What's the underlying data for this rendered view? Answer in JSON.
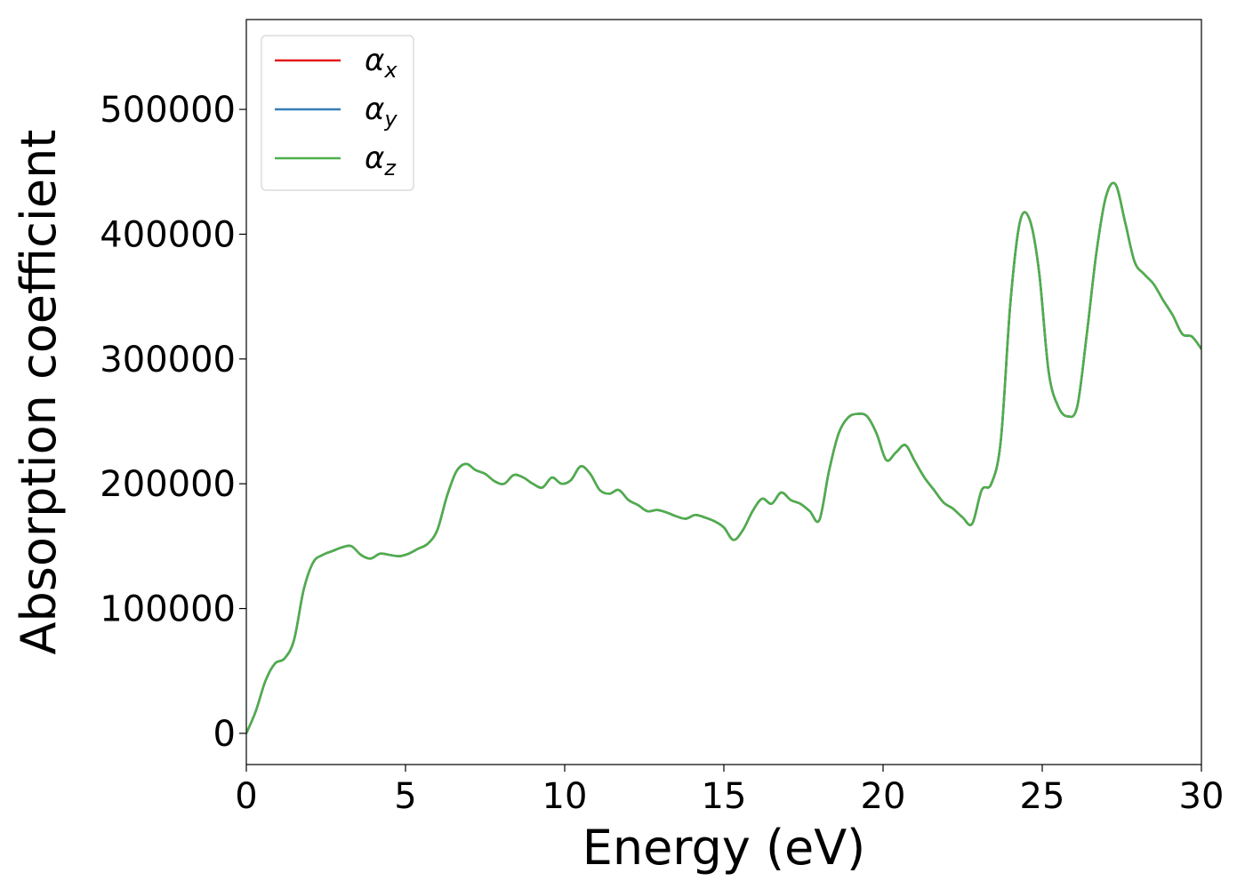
{
  "chart_data": {
    "type": "line",
    "title": "",
    "xlabel": "Energy (eV)",
    "ylabel": "Absorption coefficient",
    "xlim": [
      0,
      30
    ],
    "ylim": [
      -25000,
      572000
    ],
    "xticks": [
      0,
      5,
      10,
      15,
      20,
      25,
      30
    ],
    "yticks": [
      0,
      100000,
      200000,
      300000,
      400000,
      500000
    ],
    "grid": false,
    "legend_placement": "top-left",
    "x": [
      0,
      0.3,
      0.6,
      0.9,
      1.2,
      1.5,
      1.8,
      2.1,
      2.4,
      2.7,
      3.0,
      3.3,
      3.6,
      3.9,
      4.2,
      4.5,
      4.8,
      5.1,
      5.4,
      5.7,
      6.0,
      6.3,
      6.6,
      6.9,
      7.2,
      7.5,
      7.8,
      8.1,
      8.4,
      8.7,
      9.0,
      9.3,
      9.6,
      9.9,
      10.2,
      10.5,
      10.8,
      11.1,
      11.4,
      11.7,
      12.0,
      12.3,
      12.6,
      12.9,
      13.2,
      13.5,
      13.8,
      14.1,
      14.4,
      14.7,
      15.0,
      15.3,
      15.6,
      15.9,
      16.2,
      16.5,
      16.8,
      17.1,
      17.4,
      17.7,
      18.0,
      18.3,
      18.6,
      18.9,
      19.2,
      19.5,
      19.8,
      20.1,
      20.4,
      20.7,
      21.0,
      21.3,
      21.6,
      21.9,
      22.2,
      22.5,
      22.8,
      23.1,
      23.4,
      23.7,
      24.0,
      24.3,
      24.6,
      24.9,
      25.2,
      25.5,
      25.8,
      26.1,
      26.4,
      26.7,
      27.0,
      27.3,
      27.6,
      27.9,
      28.2,
      28.5,
      28.8,
      29.1,
      29.4,
      29.7,
      30.0
    ],
    "series": [
      {
        "name": "α_x",
        "color": "#e41a1c",
        "values": [
          0,
          18000,
          42000,
          56000,
          60000,
          75000,
          115000,
          137000,
          143000,
          146000,
          149000,
          150000,
          143000,
          140000,
          144000,
          143000,
          142000,
          144000,
          148000,
          152000,
          163000,
          190000,
          210000,
          216000,
          211000,
          208000,
          202000,
          200000,
          207000,
          205000,
          200000,
          197000,
          205000,
          200000,
          203000,
          214000,
          208000,
          195000,
          192000,
          195000,
          187000,
          183000,
          178000,
          179000,
          177000,
          174000,
          172000,
          175000,
          173000,
          170000,
          165000,
          155000,
          163000,
          178000,
          188000,
          184000,
          193000,
          187000,
          184000,
          178000,
          171000,
          210000,
          240000,
          253000,
          256000,
          254000,
          240000,
          219000,
          225000,
          231000,
          218000,
          205000,
          195000,
          185000,
          180000,
          173000,
          168000,
          195000,
          200000,
          235000,
          345000,
          410000,
          412000,
          370000,
          290000,
          262000,
          254000,
          262000,
          320000,
          385000,
          430000,
          440000,
          410000,
          378000,
          368000,
          360000,
          347000,
          335000,
          320000,
          318000,
          308000
        ]
      },
      {
        "name": "α_y",
        "color": "#377eb8",
        "values": [
          0,
          18000,
          42000,
          56000,
          60000,
          75000,
          115000,
          137000,
          143000,
          146000,
          149000,
          150000,
          143000,
          140000,
          144000,
          143000,
          142000,
          144000,
          148000,
          152000,
          163000,
          190000,
          210000,
          216000,
          211000,
          208000,
          202000,
          200000,
          207000,
          205000,
          200000,
          197000,
          205000,
          200000,
          203000,
          214000,
          208000,
          195000,
          192000,
          195000,
          187000,
          183000,
          178000,
          179000,
          177000,
          174000,
          172000,
          175000,
          173000,
          170000,
          165000,
          155000,
          163000,
          178000,
          188000,
          184000,
          193000,
          187000,
          184000,
          178000,
          171000,
          210000,
          240000,
          253000,
          256000,
          254000,
          240000,
          219000,
          225000,
          231000,
          218000,
          205000,
          195000,
          185000,
          180000,
          173000,
          168000,
          195000,
          200000,
          235000,
          345000,
          410000,
          412000,
          370000,
          290000,
          262000,
          254000,
          262000,
          320000,
          385000,
          430000,
          440000,
          410000,
          378000,
          368000,
          360000,
          347000,
          335000,
          320000,
          318000,
          308000
        ]
      },
      {
        "name": "α_z",
        "color": "#4daf4a",
        "values": [
          0,
          18000,
          42000,
          56000,
          60000,
          75000,
          115000,
          137000,
          143000,
          146000,
          149000,
          150000,
          143000,
          140000,
          144000,
          143000,
          142000,
          144000,
          148000,
          152000,
          163000,
          190000,
          210000,
          216000,
          211000,
          208000,
          202000,
          200000,
          207000,
          205000,
          200000,
          197000,
          205000,
          200000,
          203000,
          214000,
          208000,
          195000,
          192000,
          195000,
          187000,
          183000,
          178000,
          179000,
          177000,
          174000,
          172000,
          175000,
          173000,
          170000,
          165000,
          155000,
          163000,
          178000,
          188000,
          184000,
          193000,
          187000,
          184000,
          178000,
          171000,
          210000,
          240000,
          253000,
          256000,
          254000,
          240000,
          219000,
          225000,
          231000,
          218000,
          205000,
          195000,
          185000,
          180000,
          173000,
          168000,
          195000,
          200000,
          235000,
          345000,
          410000,
          412000,
          370000,
          290000,
          262000,
          254000,
          262000,
          320000,
          385000,
          430000,
          440000,
          410000,
          378000,
          368000,
          360000,
          347000,
          335000,
          320000,
          318000,
          308000
        ]
      }
    ]
  }
}
